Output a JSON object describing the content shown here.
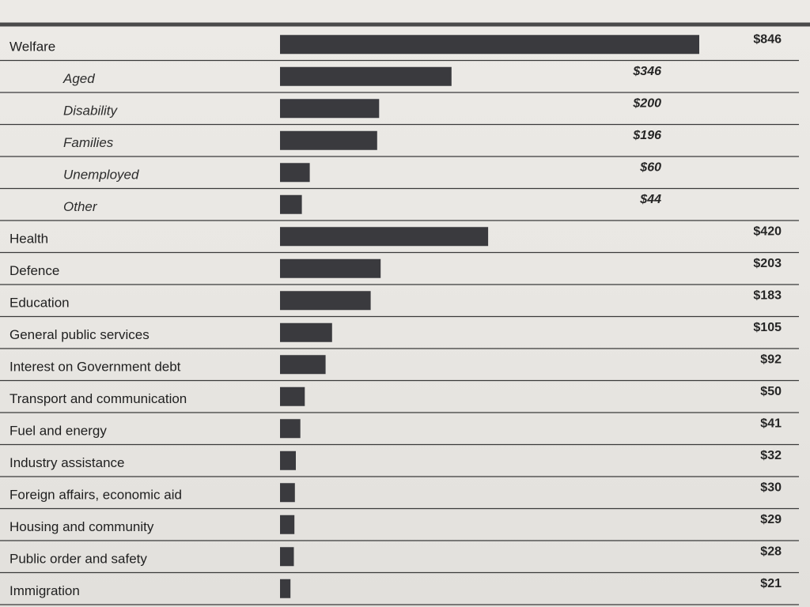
{
  "chart_data": {
    "type": "bar",
    "orientation": "horizontal",
    "currency_prefix": "$",
    "colors": {
      "bar": "#3a3a3e",
      "text": "#1f1f1f",
      "rule": "#3a3a3a"
    },
    "rows": [
      {
        "label": "Welfare",
        "value": 846,
        "value_text": "$846",
        "level": "category"
      },
      {
        "label": "Aged",
        "value": 346,
        "value_text": "$346",
        "level": "subcategory"
      },
      {
        "label": "Disability",
        "value": 200,
        "value_text": "$200",
        "level": "subcategory"
      },
      {
        "label": "Families",
        "value": 196,
        "value_text": "$196",
        "level": "subcategory"
      },
      {
        "label": "Unemployed",
        "value": 60,
        "value_text": "$60",
        "level": "subcategory"
      },
      {
        "label": "Other",
        "value": 44,
        "value_text": "$44",
        "level": "subcategory"
      },
      {
        "label": "Health",
        "value": 420,
        "value_text": "$420",
        "level": "category"
      },
      {
        "label": "Defence",
        "value": 203,
        "value_text": "$203",
        "level": "category"
      },
      {
        "label": "Education",
        "value": 183,
        "value_text": "$183",
        "level": "category"
      },
      {
        "label": "General public services",
        "value": 105,
        "value_text": "$105",
        "level": "category"
      },
      {
        "label": "Interest on Government debt",
        "value": 92,
        "value_text": "$92",
        "level": "category"
      },
      {
        "label": "Transport and communication",
        "value": 50,
        "value_text": "$50",
        "level": "category"
      },
      {
        "label": "Fuel and energy",
        "value": 41,
        "value_text": "$41",
        "level": "category"
      },
      {
        "label": "Industry assistance",
        "value": 32,
        "value_text": "$32",
        "level": "category"
      },
      {
        "label": "Foreign affairs, economic aid",
        "value": 30,
        "value_text": "$30",
        "level": "category"
      },
      {
        "label": "Housing and community",
        "value": 29,
        "value_text": "$29",
        "level": "category"
      },
      {
        "label": "Public order and safety",
        "value": 28,
        "value_text": "$28",
        "level": "category"
      },
      {
        "label": "Immigration",
        "value": 21,
        "value_text": "$21",
        "level": "category"
      }
    ]
  }
}
